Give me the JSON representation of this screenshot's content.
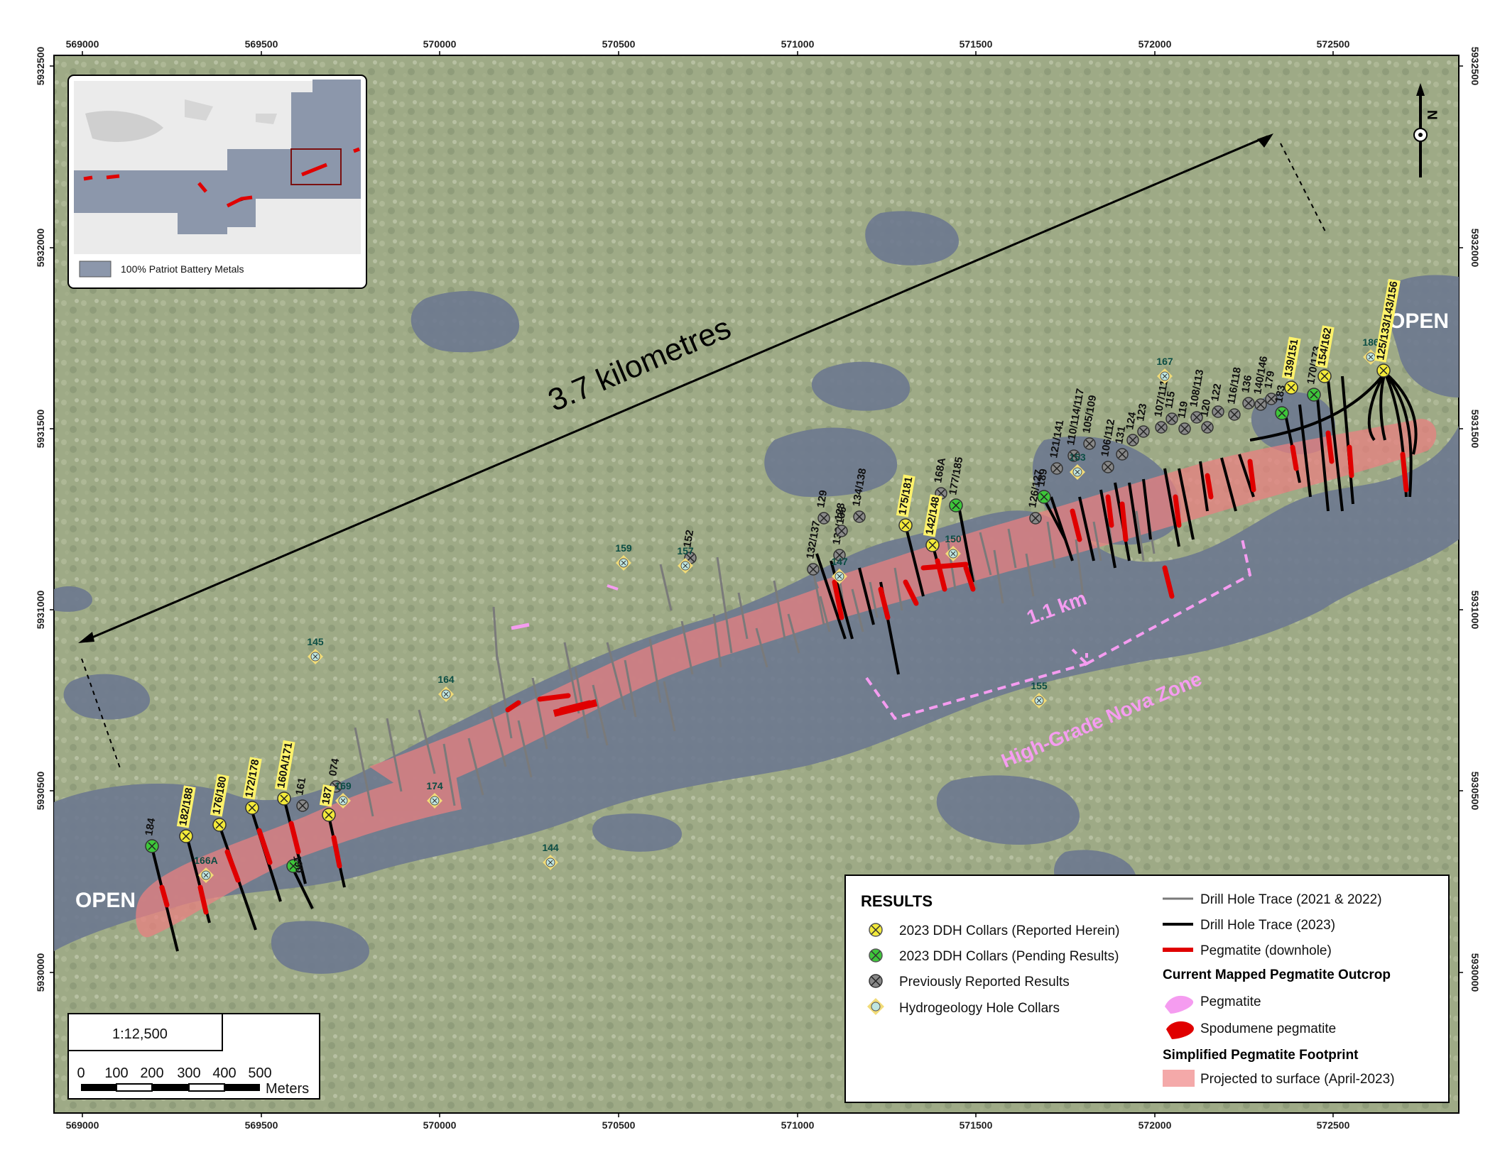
{
  "axes": {
    "x_ticks": [
      "569000",
      "569500",
      "570000",
      "570500",
      "571000",
      "571500",
      "572000",
      "572500"
    ],
    "y_ticks": [
      "5932500",
      "5932000",
      "5931500",
      "5931000",
      "5930500",
      "5930000"
    ]
  },
  "inset": {
    "legend_label": "100% Patriot Battery Metals"
  },
  "annotations": {
    "length_label": "3.7 kilometres",
    "open_east": "OPEN",
    "open_west": "OPEN",
    "nova_width": "1.1 km",
    "nova_label": "High-Grade Nova Zone"
  },
  "holes": {
    "reported": [
      "182/188",
      "176/180",
      "172/178",
      "160A/171",
      "187",
      "175/181",
      "142/148",
      "154/162",
      "139/151",
      "125/133/143/156"
    ],
    "pending": [
      "184",
      "190",
      "177/185",
      "189",
      "183",
      "170/173"
    ],
    "previous": [
      "161",
      "074",
      "152",
      "132/137",
      "129",
      "130/135",
      "128",
      "134/138",
      "168A",
      "126/127",
      "121/141",
      "110/114/117",
      "105/109",
      "106/112",
      "131",
      "124",
      "123",
      "107/111",
      "115",
      "119",
      "108/113",
      "120",
      "122",
      "116/118",
      "136",
      "140/146",
      "179"
    ],
    "hydro": [
      "166A",
      "169",
      "174",
      "145",
      "164",
      "159",
      "157",
      "147",
      "150",
      "153",
      "155",
      "144",
      "167",
      "186"
    ]
  },
  "legend": {
    "title": "RESULTS",
    "reported": "2023 DDH Collars (Reported Herein)",
    "pending": "2023 DDH Collars (Pending Results)",
    "previous": "Previously Reported Results",
    "hydro": "Hydrogeology Hole Collars",
    "trace_old": "Drill Hole Trace (2021 & 2022)",
    "trace_new": "Drill Hole Trace (2023)",
    "pegmatite_dh": "Pegmatite (downhole)",
    "outcrop_head": "Current Mapped Pegmatite Outcrop",
    "pegmatite": "Pegmatite",
    "spodumene": "Spodumene pegmatite",
    "footprint_head": "Simplified Pegmatite Footprint",
    "projected": "Projected to surface (April-2023)"
  },
  "scale": {
    "ratio": "1:12,500",
    "ticks": [
      "0",
      "100",
      "200",
      "300",
      "400",
      "500"
    ],
    "unit": "Meters"
  },
  "north_arrow": "N",
  "colors": {
    "reported": "#f3ea3a",
    "pending": "#3ec63a",
    "previous": "#888888",
    "hydro_fill": "#bfe6e0",
    "hydro_ring": "#f2dc78",
    "footprint": "#e88080",
    "pegmatite": "#e00000",
    "nova": "#f59cf0"
  }
}
